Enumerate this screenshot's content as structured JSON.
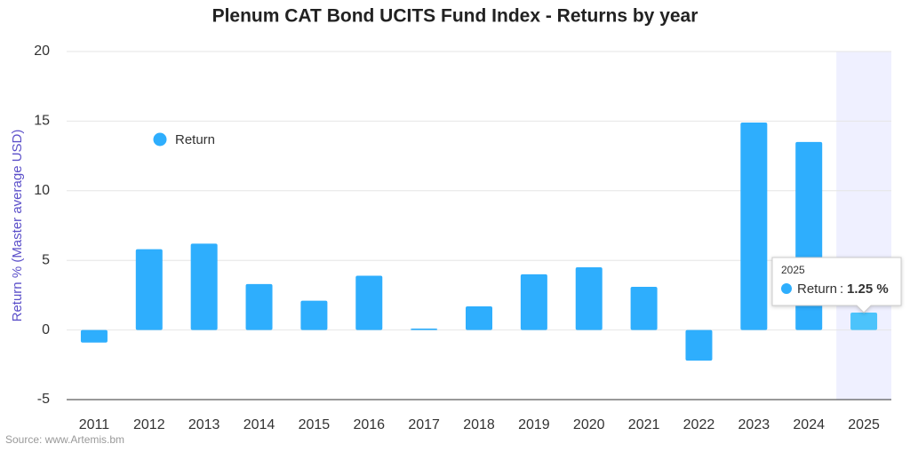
{
  "chart_data": {
    "type": "bar",
    "title": "Plenum CAT Bond UCITS Fund Index - Returns by year",
    "y_label": "Return % (Master average USD)",
    "source": "Source: www.Artemis.bm",
    "categories": [
      "2011",
      "2012",
      "2013",
      "2014",
      "2015",
      "2016",
      "2017",
      "2018",
      "2019",
      "2020",
      "2021",
      "2022",
      "2023",
      "2024",
      "2025"
    ],
    "series": [
      {
        "name": "Return",
        "color": "#2eaefd",
        "values": [
          -0.9,
          5.8,
          6.2,
          3.3,
          2.1,
          3.9,
          0.1,
          1.7,
          4.0,
          4.5,
          3.1,
          -2.2,
          14.9,
          13.5,
          1.25
        ]
      }
    ],
    "ylim": [
      -5,
      20
    ],
    "yticks": [
      -5,
      0,
      5,
      10,
      15,
      20
    ],
    "grid": true,
    "tooltip": {
      "category": "2025",
      "value_label": "1.25 %"
    }
  }
}
